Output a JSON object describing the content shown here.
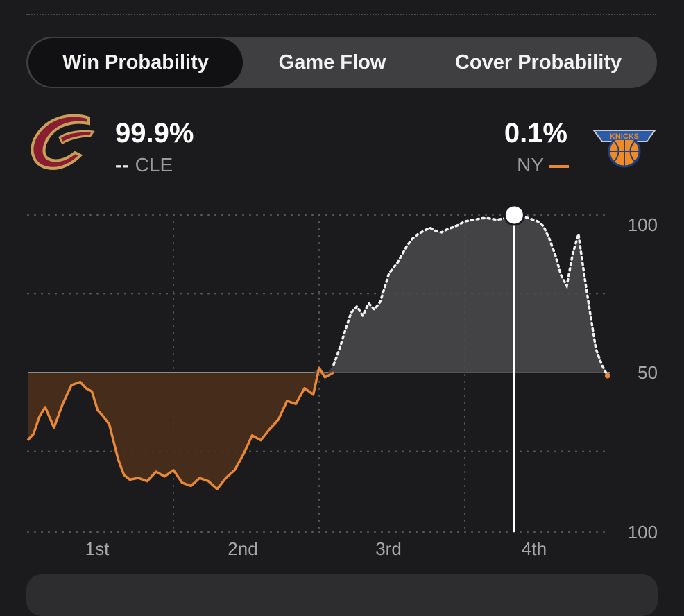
{
  "tabs": [
    {
      "label": "Win Probability",
      "active": true
    },
    {
      "label": "Game Flow",
      "active": false
    },
    {
      "label": "Cover Probability",
      "active": false
    }
  ],
  "teams": {
    "home": {
      "abbr": "CLE",
      "pct": "99.9%",
      "logo_icon": "cavaliers-c-logo-icon",
      "line_style": "dashed",
      "color": "#f2f2f2"
    },
    "away": {
      "abbr": "NY",
      "pct": "0.1%",
      "logo_icon": "knicks-logo-icon",
      "line_style": "solid",
      "color": "#e8883a"
    }
  },
  "chart_data": {
    "type": "line",
    "x_tick_labels": [
      "1st",
      "2nd",
      "3rd",
      "4th"
    ],
    "y_tick_labels": [
      "100",
      "50",
      "100"
    ],
    "y_range": [
      -100,
      100
    ],
    "grid": true,
    "cursor_x": 0.835,
    "series": [
      {
        "name": "CLE",
        "color": "#f2f2f2",
        "points": [
          [
            0,
            -43
          ],
          [
            0.01,
            -39
          ],
          [
            0.02,
            -28
          ],
          [
            0.03,
            -22
          ],
          [
            0.045,
            -35
          ],
          [
            0.06,
            -20
          ],
          [
            0.075,
            -8
          ],
          [
            0.09,
            -6
          ],
          [
            0.1,
            -10
          ],
          [
            0.11,
            -12
          ],
          [
            0.12,
            -24
          ],
          [
            0.13,
            -28
          ],
          [
            0.14,
            -33
          ],
          [
            0.155,
            -55
          ],
          [
            0.165,
            -65
          ],
          [
            0.175,
            -68
          ],
          [
            0.19,
            -67
          ],
          [
            0.205,
            -69
          ],
          [
            0.22,
            -63
          ],
          [
            0.235,
            -66
          ],
          [
            0.25,
            -62
          ],
          [
            0.265,
            -70
          ],
          [
            0.28,
            -72
          ],
          [
            0.295,
            -67
          ],
          [
            0.31,
            -69
          ],
          [
            0.325,
            -74
          ],
          [
            0.34,
            -67
          ],
          [
            0.355,
            -62
          ],
          [
            0.37,
            -52
          ],
          [
            0.385,
            -40
          ],
          [
            0.4,
            -43
          ],
          [
            0.415,
            -36
          ],
          [
            0.43,
            -30
          ],
          [
            0.445,
            -18
          ],
          [
            0.46,
            -20
          ],
          [
            0.475,
            -10
          ],
          [
            0.49,
            -14
          ],
          [
            0.5,
            3
          ],
          [
            0.51,
            -3
          ],
          [
            0.515,
            -2
          ],
          [
            0.525,
            5
          ],
          [
            0.535,
            15
          ],
          [
            0.545,
            27
          ],
          [
            0.555,
            38
          ],
          [
            0.565,
            42
          ],
          [
            0.575,
            36
          ],
          [
            0.585,
            44
          ],
          [
            0.595,
            40
          ],
          [
            0.605,
            45
          ],
          [
            0.62,
            63
          ],
          [
            0.635,
            70
          ],
          [
            0.65,
            80
          ],
          [
            0.66,
            85
          ],
          [
            0.67,
            88
          ],
          [
            0.68,
            90
          ],
          [
            0.69,
            92
          ],
          [
            0.7,
            90
          ],
          [
            0.71,
            89
          ],
          [
            0.72,
            91
          ],
          [
            0.735,
            93
          ],
          [
            0.75,
            96
          ],
          [
            0.765,
            97
          ],
          [
            0.78,
            98
          ],
          [
            0.79,
            98
          ],
          [
            0.805,
            97
          ],
          [
            0.82,
            98
          ],
          [
            0.835,
            99
          ],
          [
            0.85,
            99
          ],
          [
            0.86,
            98
          ],
          [
            0.875,
            96
          ],
          [
            0.885,
            93
          ],
          [
            0.895,
            85
          ],
          [
            0.905,
            75
          ],
          [
            0.915,
            62
          ],
          [
            0.925,
            55
          ],
          [
            0.935,
            75
          ],
          [
            0.945,
            88
          ],
          [
            0.955,
            62
          ],
          [
            0.965,
            38
          ],
          [
            0.975,
            15
          ],
          [
            0.985,
            5
          ],
          [
            0.995,
            -2
          ]
        ]
      },
      {
        "name": "NY",
        "color": "#e8883a",
        "points": [
          [
            0,
            -43
          ],
          [
            0.01,
            -39
          ],
          [
            0.02,
            -28
          ],
          [
            0.03,
            -22
          ],
          [
            0.045,
            -35
          ],
          [
            0.06,
            -20
          ],
          [
            0.075,
            -8
          ],
          [
            0.09,
            -6
          ],
          [
            0.1,
            -10
          ],
          [
            0.11,
            -12
          ],
          [
            0.12,
            -24
          ],
          [
            0.13,
            -28
          ],
          [
            0.14,
            -33
          ],
          [
            0.155,
            -55
          ],
          [
            0.165,
            -65
          ],
          [
            0.175,
            -68
          ],
          [
            0.19,
            -67
          ],
          [
            0.205,
            -69
          ],
          [
            0.22,
            -63
          ],
          [
            0.235,
            -66
          ],
          [
            0.25,
            -62
          ],
          [
            0.265,
            -70
          ],
          [
            0.28,
            -72
          ],
          [
            0.295,
            -67
          ],
          [
            0.31,
            -69
          ],
          [
            0.325,
            -74
          ],
          [
            0.34,
            -67
          ],
          [
            0.355,
            -62
          ],
          [
            0.37,
            -52
          ],
          [
            0.385,
            -40
          ],
          [
            0.4,
            -43
          ],
          [
            0.415,
            -36
          ],
          [
            0.43,
            -30
          ],
          [
            0.445,
            -18
          ],
          [
            0.46,
            -20
          ],
          [
            0.475,
            -10
          ],
          [
            0.49,
            -14
          ],
          [
            0.5,
            3
          ],
          [
            0.51,
            -3
          ],
          [
            0.515,
            -2
          ],
          [
            0.525,
            0
          ]
        ]
      }
    ]
  }
}
